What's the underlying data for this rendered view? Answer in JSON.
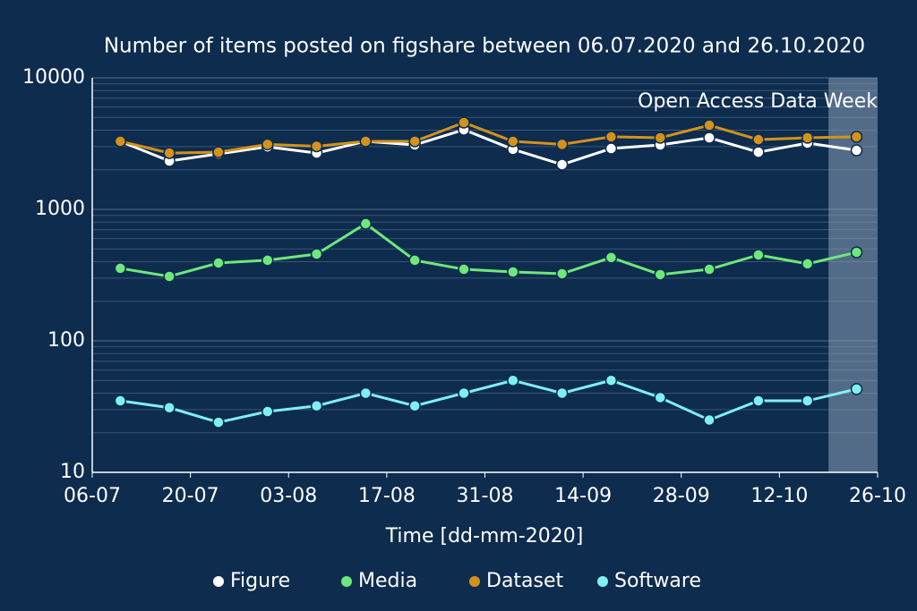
{
  "chart_data": {
    "type": "line",
    "title": "Number of items posted on figshare between 06.07.2020 and 26.10.2020",
    "x_label": "Time [dd-mm-2020]",
    "x": [
      "10-07",
      "17-07",
      "24-07",
      "31-07",
      "07-08",
      "14-08",
      "21-08",
      "28-08",
      "04-09",
      "11-09",
      "18-09",
      "25-09",
      "02-10",
      "09-10",
      "16-10",
      "23-10"
    ],
    "xlim": [
      "06-07",
      "26-10"
    ],
    "xticks": [
      "06-07",
      "20-07",
      "03-08",
      "17-08",
      "31-08",
      "14-09",
      "28-09",
      "12-10",
      "26-10"
    ],
    "ylim": [
      10,
      10000
    ],
    "yticks": [
      10,
      100,
      1000,
      10000
    ],
    "log_scale": true,
    "grid": true,
    "legend": "bottom",
    "highlight": {
      "from": "19-10",
      "to": "26-10",
      "label": "Open Access Data Week"
    },
    "series": [
      {
        "name": "Figure",
        "color": "#ffffff",
        "values": [
          3290,
          2330,
          2640,
          2990,
          2680,
          3290,
          3090,
          4030,
          2860,
          2190,
          2900,
          3090,
          3500,
          2720,
          3190,
          2810
        ]
      },
      {
        "name": "Media",
        "color": "#6ee87a",
        "values": [
          356,
          309,
          391,
          410,
          457,
          778,
          410,
          350,
          334,
          324,
          430,
          319,
          350,
          450,
          385,
          471
        ]
      },
      {
        "name": "Dataset",
        "color": "#d4921a",
        "values": [
          3290,
          2680,
          2720,
          3120,
          3020,
          3290,
          3290,
          4570,
          3290,
          3120,
          3560,
          3500,
          4360,
          3390,
          3500,
          3560
        ]
      },
      {
        "name": "Software",
        "color": "#7ff0f0",
        "values": [
          35,
          31,
          24,
          29,
          32,
          40,
          32,
          40,
          50,
          40,
          50,
          37,
          25,
          35,
          35,
          43
        ]
      }
    ]
  }
}
